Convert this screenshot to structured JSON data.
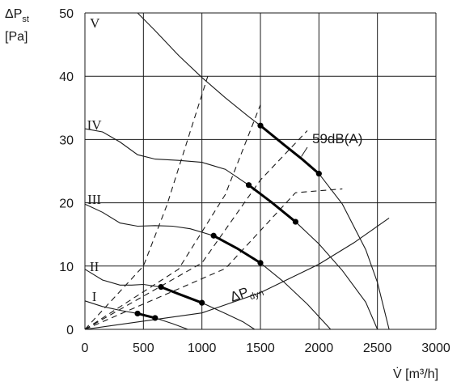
{
  "chart_data": {
    "type": "line",
    "xlabel": "V̇ [m³/h]",
    "ylabel": [
      "ΔP",
      "st",
      "[Pa]"
    ],
    "xlim": [
      0,
      3000
    ],
    "ylim": [
      0,
      50
    ],
    "x_ticks": [
      0,
      500,
      1000,
      1500,
      2000,
      2500,
      3000
    ],
    "y_ticks": [
      0,
      10,
      20,
      30,
      40,
      50
    ],
    "grid": true,
    "fan_curves": [
      {
        "name": "I",
        "points": [
          [
            0,
            4.5
          ],
          [
            150,
            3.6
          ],
          [
            300,
            3.0
          ],
          [
            450,
            2.5
          ],
          [
            600,
            1.8
          ],
          [
            750,
            0.9
          ],
          [
            880,
            0
          ]
        ]
      },
      {
        "name": "II",
        "points": [
          [
            0,
            9.5
          ],
          [
            150,
            7.8
          ],
          [
            300,
            7.0
          ],
          [
            400,
            7.0
          ],
          [
            500,
            7.1
          ],
          [
            650,
            6.7
          ],
          [
            800,
            5.6
          ],
          [
            1000,
            4.2
          ],
          [
            1200,
            2.5
          ],
          [
            1350,
            1.2
          ],
          [
            1450,
            0
          ]
        ]
      },
      {
        "name": "III",
        "points": [
          [
            0,
            19.8
          ],
          [
            150,
            18.5
          ],
          [
            300,
            16.8
          ],
          [
            450,
            16.3
          ],
          [
            600,
            16.4
          ],
          [
            750,
            16.3
          ],
          [
            900,
            15.9
          ],
          [
            1100,
            14.8
          ],
          [
            1300,
            12.8
          ],
          [
            1500,
            10.5
          ],
          [
            1700,
            7.5
          ],
          [
            1900,
            4.0
          ],
          [
            2100,
            0
          ]
        ]
      },
      {
        "name": "IV",
        "points": [
          [
            0,
            31.7
          ],
          [
            150,
            31.2
          ],
          [
            300,
            29.6
          ],
          [
            450,
            27.6
          ],
          [
            600,
            26.9
          ],
          [
            800,
            26.7
          ],
          [
            1000,
            26.4
          ],
          [
            1200,
            25.3
          ],
          [
            1400,
            22.8
          ],
          [
            1600,
            20.0
          ],
          [
            1800,
            17.0
          ],
          [
            2000,
            13.5
          ],
          [
            2200,
            9.3
          ],
          [
            2400,
            4.3
          ],
          [
            2500,
            0
          ]
        ]
      },
      {
        "name": "V",
        "points": [
          [
            450,
            50
          ],
          [
            600,
            47.2
          ],
          [
            800,
            43.3
          ],
          [
            1000,
            39.8
          ],
          [
            1200,
            36.6
          ],
          [
            1400,
            33.6
          ],
          [
            1500,
            32.2
          ],
          [
            1700,
            29.2
          ],
          [
            1850,
            27.0
          ],
          [
            2000,
            24.6
          ],
          [
            2200,
            19.8
          ],
          [
            2400,
            12.6
          ],
          [
            2500,
            7.4
          ],
          [
            2600,
            0
          ]
        ]
      }
    ],
    "system_curves_dashed": [
      {
        "points": [
          [
            0,
            0
          ],
          [
            500,
            10
          ],
          [
            700,
            19.6
          ],
          [
            1050,
            40
          ]
        ]
      },
      {
        "points": [
          [
            0,
            0
          ],
          [
            800,
            9.5
          ],
          [
            1200,
            21.3
          ],
          [
            1500,
            35.5
          ]
        ]
      },
      {
        "points": [
          [
            0,
            0
          ],
          [
            1000,
            10.5
          ],
          [
            1500,
            23.6
          ],
          [
            1900,
            31.4
          ]
        ]
      },
      {
        "points": [
          [
            0,
            0
          ],
          [
            1200,
            9.6
          ],
          [
            1800,
            21.6
          ],
          [
            2200,
            22.2
          ]
        ]
      }
    ],
    "dynamic_pressure_curve": {
      "label": [
        "ΔP",
        "dyn"
      ],
      "points": [
        [
          0,
          0
        ],
        [
          1000,
          2.6
        ],
        [
          1500,
          5.8
        ],
        [
          2000,
          10.3
        ],
        [
          2300,
          13.7
        ],
        [
          2600,
          17.6
        ]
      ]
    },
    "operating_segments": [
      {
        "points": [
          [
            450,
            2.5
          ],
          [
            600,
            1.8
          ]
        ]
      },
      {
        "points": [
          [
            650,
            6.7
          ],
          [
            800,
            5.6
          ],
          [
            1000,
            4.2
          ]
        ]
      },
      {
        "points": [
          [
            1100,
            14.8
          ],
          [
            1300,
            12.8
          ],
          [
            1500,
            10.5
          ]
        ]
      },
      {
        "points": [
          [
            1400,
            22.8
          ],
          [
            1600,
            20.0
          ],
          [
            1800,
            17.0
          ]
        ]
      },
      {
        "points": [
          [
            1500,
            32.2
          ],
          [
            1700,
            29.2
          ],
          [
            1850,
            27.0
          ],
          [
            2000,
            24.6
          ]
        ]
      }
    ],
    "operating_points": [
      [
        450,
        2.5
      ],
      [
        600,
        1.8
      ],
      [
        650,
        6.7
      ],
      [
        1000,
        4.2
      ],
      [
        1100,
        14.8
      ],
      [
        1500,
        10.5
      ],
      [
        1400,
        22.8
      ],
      [
        1800,
        17.0
      ],
      [
        1500,
        32.2
      ],
      [
        2000,
        24.6
      ]
    ],
    "annotations": [
      "59dB(A)"
    ]
  }
}
